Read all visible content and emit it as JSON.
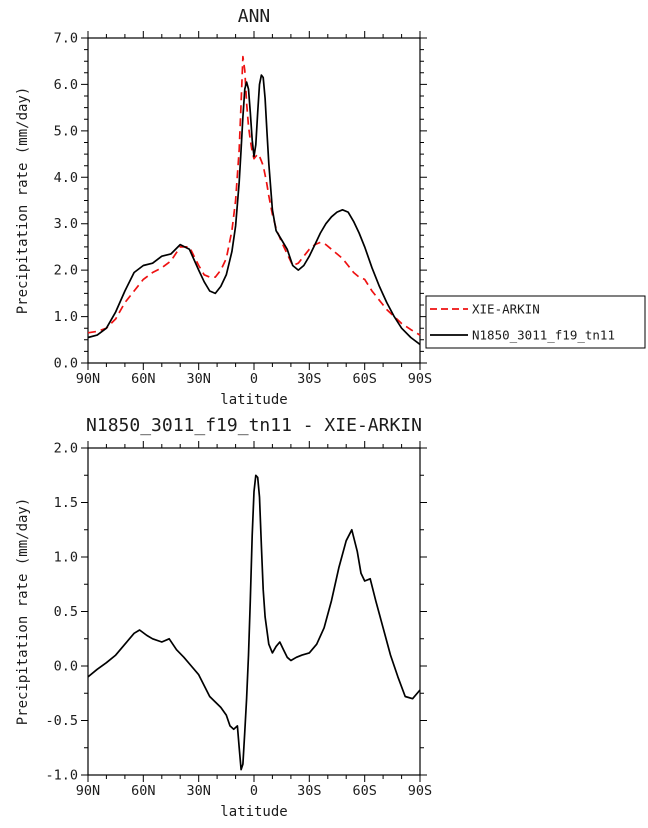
{
  "figure": {
    "background": "#ffffff",
    "text_color": "#1c1c1c"
  },
  "chart_data": [
    {
      "id": "ann",
      "type": "line",
      "title": "ANN",
      "xlabel": "latitude",
      "ylabel": "Precipitation rate (mm/day)",
      "xlim": [
        90,
        -90
      ],
      "ylim": [
        0.0,
        7.0
      ],
      "grid": false,
      "x_tick_values": [
        90,
        60,
        30,
        0,
        -30,
        -60,
        -90
      ],
      "x_tick_labels": [
        "90N",
        "60N",
        "30N",
        "0",
        "30S",
        "60S",
        "90S"
      ],
      "x_minor_step": 10,
      "y_tick_values": [
        0,
        1,
        2,
        3,
        4,
        5,
        6,
        7
      ],
      "y_tick_labels": [
        "0.0",
        "1.0",
        "2.0",
        "3.0",
        "4.0",
        "5.0",
        "6.0",
        "7.0"
      ],
      "y_minor_step": 0.25,
      "legend": {
        "position": "outside-right"
      },
      "x": [
        90,
        85,
        80,
        75,
        70,
        65,
        60,
        55,
        50,
        45,
        40,
        35,
        30,
        27,
        24,
        21,
        18,
        15,
        12,
        10,
        8,
        7,
        6,
        5,
        4,
        3,
        2,
        1,
        0,
        -1,
        -2,
        -3,
        -4,
        -5,
        -6,
        -7,
        -8,
        -10,
        -12,
        -15,
        -18,
        -21,
        -24,
        -27,
        -30,
        -33,
        -36,
        -39,
        -42,
        -45,
        -48,
        -51,
        -54,
        -57,
        -60,
        -64,
        -68,
        -72,
        -76,
        -80,
        -85,
        -90
      ],
      "series": [
        {
          "name": "XIE-ARKIN",
          "color": "#ee1111",
          "dash": "dashed",
          "values": [
            0.65,
            0.68,
            0.75,
            0.95,
            1.3,
            1.55,
            1.8,
            1.95,
            2.05,
            2.2,
            2.5,
            2.5,
            2.1,
            1.9,
            1.85,
            1.85,
            2.0,
            2.25,
            2.85,
            3.5,
            4.6,
            5.6,
            6.6,
            6.3,
            5.6,
            5.1,
            4.8,
            4.55,
            4.4,
            4.45,
            4.5,
            4.45,
            4.35,
            4.25,
            4.05,
            3.85,
            3.6,
            3.2,
            2.9,
            2.6,
            2.35,
            2.1,
            2.15,
            2.3,
            2.45,
            2.55,
            2.6,
            2.55,
            2.45,
            2.35,
            2.25,
            2.1,
            1.95,
            1.85,
            1.8,
            1.55,
            1.35,
            1.15,
            1.0,
            0.85,
            0.72,
            0.6
          ]
        },
        {
          "name": "N1850_3011_f19_tn11",
          "color": "#000000",
          "dash": "solid",
          "values": [
            0.55,
            0.6,
            0.75,
            1.1,
            1.55,
            1.95,
            2.1,
            2.15,
            2.3,
            2.35,
            2.55,
            2.45,
            2.0,
            1.75,
            1.55,
            1.5,
            1.65,
            1.9,
            2.4,
            2.95,
            3.9,
            4.6,
            5.3,
            5.9,
            6.05,
            5.9,
            5.4,
            4.8,
            4.45,
            4.7,
            5.4,
            6.0,
            6.2,
            6.15,
            5.7,
            5.0,
            4.3,
            3.3,
            2.85,
            2.65,
            2.45,
            2.1,
            2.0,
            2.1,
            2.3,
            2.55,
            2.8,
            3.0,
            3.15,
            3.25,
            3.3,
            3.25,
            3.05,
            2.8,
            2.5,
            2.05,
            1.65,
            1.3,
            1.0,
            0.75,
            0.55,
            0.4
          ]
        }
      ]
    },
    {
      "id": "diff",
      "type": "line",
      "title": "N1850_3011_f19_tn11 - XIE-ARKIN",
      "xlabel": "latitude",
      "ylabel": "Precipitation rate (mm/day)",
      "xlim": [
        90,
        -90
      ],
      "ylim": [
        -1.0,
        2.0
      ],
      "grid": false,
      "x_tick_values": [
        90,
        60,
        30,
        0,
        -30,
        -60,
        -90
      ],
      "x_tick_labels": [
        "90N",
        "60N",
        "30N",
        "0",
        "30S",
        "60S",
        "90S"
      ],
      "x_minor_step": 10,
      "y_tick_values": [
        -1.0,
        -0.5,
        0.0,
        0.5,
        1.0,
        1.5,
        2.0
      ],
      "y_tick_labels": [
        "-1.0",
        "-0.5",
        "0.0",
        "0.5",
        "1.0",
        "1.5",
        "2.0"
      ],
      "y_minor_step": 0.25,
      "x": [
        90,
        85,
        80,
        75,
        70,
        65,
        62,
        58,
        55,
        50,
        46,
        42,
        38,
        34,
        30,
        27,
        24,
        21,
        18,
        15,
        13,
        11,
        9,
        8,
        7,
        6,
        5,
        4,
        3,
        2,
        1,
        0,
        -1,
        -2,
        -3,
        -4,
        -5,
        -6,
        -8,
        -10,
        -12,
        -14,
        -16,
        -18,
        -20,
        -23,
        -26,
        -30,
        -34,
        -38,
        -42,
        -46,
        -50,
        -53,
        -56,
        -58,
        -60,
        -63,
        -66,
        -70,
        -74,
        -78,
        -82,
        -86,
        -90
      ],
      "series": [
        {
          "name": "N1850_3011_f19_tn11 - XIE-ARKIN",
          "color": "#000000",
          "dash": "solid",
          "values": [
            -0.1,
            -0.03,
            0.03,
            0.1,
            0.2,
            0.3,
            0.33,
            0.28,
            0.25,
            0.22,
            0.25,
            0.15,
            0.08,
            0.0,
            -0.08,
            -0.18,
            -0.28,
            -0.33,
            -0.38,
            -0.45,
            -0.55,
            -0.58,
            -0.55,
            -0.75,
            -0.95,
            -0.9,
            -0.6,
            -0.3,
            0.1,
            0.6,
            1.2,
            1.6,
            1.75,
            1.73,
            1.55,
            1.1,
            0.7,
            0.45,
            0.2,
            0.12,
            0.18,
            0.22,
            0.15,
            0.08,
            0.05,
            0.08,
            0.1,
            0.12,
            0.2,
            0.35,
            0.6,
            0.9,
            1.15,
            1.25,
            1.05,
            0.85,
            0.78,
            0.8,
            0.6,
            0.35,
            0.1,
            -0.1,
            -0.28,
            -0.3,
            -0.22
          ]
        }
      ]
    }
  ]
}
